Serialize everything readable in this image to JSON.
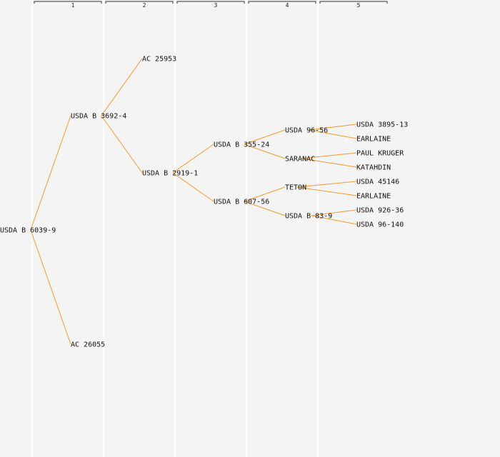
{
  "generations": [
    "1",
    "2",
    "3",
    "4",
    "5"
  ],
  "nodes": [
    {
      "id": "n0",
      "label": "USDA B 6039-9",
      "gen": 0,
      "row": 7.5
    },
    {
      "id": "n1",
      "label": "USDA B 3692-4",
      "gen": 1,
      "row": 3.5
    },
    {
      "id": "n2",
      "label": "AC 26055",
      "gen": 1,
      "row": 11.5
    },
    {
      "id": "n3",
      "label": "AC 25953",
      "gen": 2,
      "row": 1.5
    },
    {
      "id": "n4",
      "label": "USDA B 2919-1",
      "gen": 2,
      "row": 5.5
    },
    {
      "id": "n5",
      "label": "USDA B 355-24",
      "gen": 3,
      "row": 4.5
    },
    {
      "id": "n6",
      "label": "USDA B 607-56",
      "gen": 3,
      "row": 6.5
    },
    {
      "id": "n7",
      "label": "USDA 96-56",
      "gen": 4,
      "row": 4
    },
    {
      "id": "n8",
      "label": "SARANAC",
      "gen": 4,
      "row": 5
    },
    {
      "id": "n9",
      "label": "TETON",
      "gen": 4,
      "row": 6
    },
    {
      "id": "n10",
      "label": "USDA B 83-9",
      "gen": 4,
      "row": 7
    },
    {
      "id": "n11",
      "label": "USDA 3895-13",
      "gen": 5,
      "row": 3.8
    },
    {
      "id": "n12",
      "label": "EARLAINE",
      "gen": 5,
      "row": 4.3
    },
    {
      "id": "n13",
      "label": "PAUL KRUGER",
      "gen": 5,
      "row": 4.8
    },
    {
      "id": "n14",
      "label": "KATAHDIN",
      "gen": 5,
      "row": 5.3
    },
    {
      "id": "n15",
      "label": "USDA 45146",
      "gen": 5,
      "row": 5.8
    },
    {
      "id": "n16",
      "label": "EARLAINE",
      "gen": 5,
      "row": 6.3
    },
    {
      "id": "n17",
      "label": "USDA 926-36",
      "gen": 5,
      "row": 6.8
    },
    {
      "id": "n18",
      "label": "USDA 96-140",
      "gen": 5,
      "row": 7.3
    }
  ],
  "edges": [
    [
      "n0",
      "n1"
    ],
    [
      "n0",
      "n2"
    ],
    [
      "n1",
      "n3"
    ],
    [
      "n1",
      "n4"
    ],
    [
      "n4",
      "n5"
    ],
    [
      "n4",
      "n6"
    ],
    [
      "n5",
      "n7"
    ],
    [
      "n5",
      "n8"
    ],
    [
      "n6",
      "n9"
    ],
    [
      "n6",
      "n10"
    ],
    [
      "n7",
      "n11"
    ],
    [
      "n7",
      "n12"
    ],
    [
      "n8",
      "n13"
    ],
    [
      "n8",
      "n14"
    ],
    [
      "n9",
      "n15"
    ],
    [
      "n9",
      "n16"
    ],
    [
      "n10",
      "n17"
    ],
    [
      "n10",
      "n18"
    ]
  ],
  "colors": {
    "edge": "#f59a2a",
    "background": "#f4f4f4",
    "column_line": "#ffffff"
  }
}
